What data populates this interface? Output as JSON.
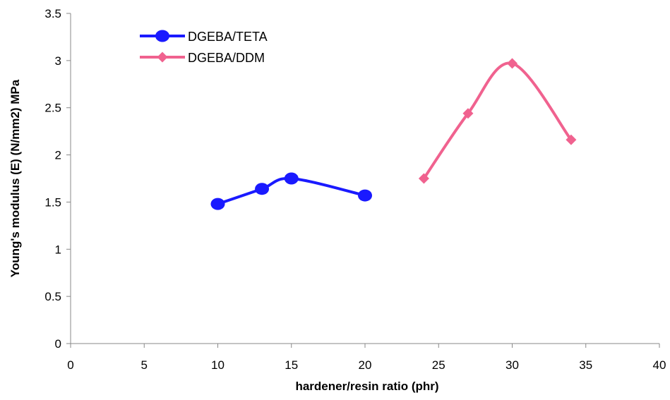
{
  "chart_data": {
    "type": "line",
    "xlabel": "hardener/resin ratio (phr)",
    "ylabel": "Young's modulus (E) (N/mm2) MPa",
    "xlim": [
      0,
      40
    ],
    "ylim": [
      0,
      3.5
    ],
    "x_ticks": [
      "0",
      "5",
      "10",
      "15",
      "20",
      "25",
      "30",
      "35",
      "40"
    ],
    "y_ticks": [
      "0",
      "0.5",
      "1",
      "1.5",
      "2",
      "2.5",
      "3",
      "3.5"
    ],
    "grid": false,
    "legend_position": "top-left",
    "series": [
      {
        "name": "DGEBA/TETA",
        "color": "#1a1aff",
        "marker": "circle",
        "smooth": true,
        "x": [
          10,
          13,
          15,
          20
        ],
        "y": [
          1.48,
          1.64,
          1.75,
          1.57
        ]
      },
      {
        "name": "DGEBA/DDM",
        "color": "#f0628f",
        "marker": "diamond",
        "smooth": true,
        "x": [
          24,
          27,
          30,
          34
        ],
        "y": [
          1.75,
          2.44,
          2.97,
          2.16
        ]
      }
    ]
  }
}
